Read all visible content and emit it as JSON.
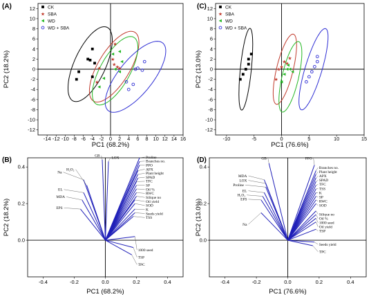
{
  "figure": {
    "colors": {
      "CK": "#000000",
      "SBA": "#c0392b",
      "WD": "#22b722",
      "WD + SBA": "#2d2dd4",
      "vector": "#1f1fb8",
      "leader": "#444444"
    },
    "legend_entries": [
      "CK",
      "SBA",
      "WD",
      "WD + SBA"
    ]
  },
  "chart_data": [
    {
      "id": "A",
      "panel_label": "(A)",
      "type": "scatter",
      "xlabel": "PC1 (68.2%)",
      "ylabel": "PC2 (18.2%)",
      "xlim": [
        -16,
        16
      ],
      "ylim": [
        -13,
        13
      ],
      "xticks": [
        -14,
        -12,
        -10,
        -8,
        -6,
        -4,
        -2,
        0,
        2,
        4,
        6,
        8,
        10,
        12,
        14,
        16
      ],
      "yticks": [
        -12,
        -10,
        -8,
        -6,
        -4,
        -2,
        0,
        2,
        4,
        6,
        8,
        10,
        12
      ],
      "series": [
        {
          "name": "CK",
          "marker": "square",
          "points": [
            [
              -7.5,
              -2.0
            ],
            [
              -7.0,
              -0.5
            ],
            [
              -5.0,
              2.0
            ],
            [
              -4.5,
              1.8
            ],
            [
              -4.0,
              4.0
            ],
            [
              -4.0,
              -1.5
            ],
            [
              -3.5,
              1.2
            ]
          ]
        },
        {
          "name": "SBA",
          "marker": "star",
          "points": [
            [
              -3.0,
              -2.5
            ],
            [
              -2.5,
              0.2
            ],
            [
              0.5,
              2.0
            ],
            [
              0.8,
              1.0
            ],
            [
              1.0,
              5.0
            ],
            [
              1.5,
              0.5
            ],
            [
              2.0,
              0.2
            ]
          ]
        },
        {
          "name": "WD",
          "marker": "triangle-left",
          "points": [
            [
              -2.5,
              -3.5
            ],
            [
              -1.5,
              -1.8
            ],
            [
              0.5,
              3.0
            ],
            [
              1.0,
              0.0
            ],
            [
              2.0,
              3.5
            ],
            [
              2.5,
              1.5
            ],
            [
              2.0,
              -0.5
            ]
          ]
        },
        {
          "name": "WD + SBA",
          "marker": "circle",
          "points": [
            [
              3.5,
              -2.5
            ],
            [
              4.0,
              -4.0
            ],
            [
              5.0,
              -3.0
            ],
            [
              5.5,
              0.0
            ],
            [
              6.0,
              0.2
            ],
            [
              7.0,
              -0.2
            ],
            [
              7.5,
              1.5
            ]
          ]
        }
      ],
      "ellipses": [
        {
          "series": "CK",
          "center": [
            -4.5,
            1.0
          ],
          "rx": 8.2,
          "ry": 3.4,
          "angle_deg": 62
        },
        {
          "series": "SBA",
          "center": [
            0.8,
            0.5
          ],
          "rx": 8.2,
          "ry": 3.4,
          "angle_deg": 55
        },
        {
          "series": "WD",
          "center": [
            1.0,
            -0.3
          ],
          "rx": 7.8,
          "ry": 3.2,
          "angle_deg": 57
        },
        {
          "series": "WD + SBA",
          "center": [
            5.5,
            -1.5
          ],
          "rx": 9.0,
          "ry": 3.6,
          "angle_deg": 47
        }
      ]
    },
    {
      "id": "C",
      "panel_label": "(C)",
      "type": "scatter",
      "xlabel": "PC1 (76.6%)",
      "ylabel": "PC2 (13.0%)",
      "xlim": [
        -12,
        15
      ],
      "ylim": [
        -13,
        13
      ],
      "xticks": [
        -10,
        -5,
        0,
        5,
        10,
        15
      ],
      "yticks": [
        -12,
        -10,
        -8,
        -6,
        -4,
        -2,
        0,
        2,
        4,
        6,
        8,
        10,
        12
      ],
      "series": [
        {
          "name": "CK",
          "marker": "square",
          "points": [
            [
              -7.5,
              -2.0
            ],
            [
              -7.0,
              -1.0
            ],
            [
              -6.5,
              0.0
            ],
            [
              -6.0,
              1.0
            ],
            [
              -6.0,
              2.0
            ],
            [
              -5.5,
              3.0
            ]
          ]
        },
        {
          "name": "SBA",
          "marker": "star",
          "points": [
            [
              -1.0,
              -2.0
            ],
            [
              -0.5,
              0.0
            ],
            [
              0.0,
              0.5
            ],
            [
              0.5,
              1.5
            ],
            [
              1.0,
              1.2
            ],
            [
              1.5,
              2.2
            ]
          ]
        },
        {
          "name": "WD",
          "marker": "triangle-left",
          "points": [
            [
              0.0,
              -2.5
            ],
            [
              0.5,
              -1.0
            ],
            [
              1.0,
              0.0
            ],
            [
              1.2,
              0.8
            ],
            [
              1.5,
              0.0
            ],
            [
              2.0,
              -0.5
            ]
          ]
        },
        {
          "name": "WD + SBA",
          "marker": "circle",
          "points": [
            [
              4.5,
              -2.5
            ],
            [
              5.0,
              -1.5
            ],
            [
              5.5,
              -0.5
            ],
            [
              6.0,
              0.5
            ],
            [
              6.5,
              1.5
            ],
            [
              6.5,
              2.5
            ]
          ]
        }
      ],
      "ellipses": [
        {
          "series": "CK",
          "center": [
            -6.5,
            0.0
          ],
          "rx": 8.2,
          "ry": 1.8,
          "angle_deg": 80
        },
        {
          "series": "SBA",
          "center": [
            0.6,
            0.0
          ],
          "rx": 7.5,
          "ry": 2.6,
          "angle_deg": 66
        },
        {
          "series": "WD",
          "center": [
            1.6,
            -1.5
          ],
          "rx": 7.5,
          "ry": 2.6,
          "angle_deg": 67
        },
        {
          "series": "WD + SBA",
          "center": [
            5.8,
            0.0
          ],
          "rx": 9.0,
          "ry": 2.6,
          "angle_deg": 62
        }
      ]
    },
    {
      "id": "B",
      "panel_label": "(B)",
      "type": "biplot",
      "xlabel": "PC1 (68.2%)",
      "ylabel": "PC2 (18.2%)",
      "xlim": [
        -0.5,
        0.5
      ],
      "ylim": [
        -0.2,
        0.45
      ],
      "xticks": [
        -0.4,
        -0.2,
        0.0,
        0.2,
        0.4
      ],
      "yticks": [
        0.0,
        0.2,
        0.4
      ],
      "vectors": [
        {
          "name": "GB",
          "x": -0.02,
          "y": 0.44,
          "lx": -0.035,
          "ly": 0.455
        },
        {
          "name": "LOX",
          "x": 0.02,
          "y": 0.43,
          "lx": 0.04,
          "ly": 0.445
        },
        {
          "name": "Na",
          "x": -0.14,
          "y": 0.33,
          "lx": -0.28,
          "ly": 0.365
        },
        {
          "name": "H₂O₂",
          "x": -0.12,
          "y": 0.3,
          "lx": -0.2,
          "ly": 0.38
        },
        {
          "name": "EL",
          "x": -0.14,
          "y": 0.26,
          "lx": -0.275,
          "ly": 0.27
        },
        {
          "name": "MDA",
          "x": -0.15,
          "y": 0.22,
          "lx": -0.26,
          "ly": 0.23
        },
        {
          "name": "EPS",
          "x": -0.16,
          "y": 0.17,
          "lx": -0.275,
          "ly": 0.17
        },
        {
          "name": "Proline",
          "x": 0.22,
          "y": 0.45,
          "lx": 0.26,
          "ly": 0.447
        },
        {
          "name": "Branches no.",
          "x": 0.22,
          "y": 0.43,
          "lx": 0.26,
          "ly": 0.425
        },
        {
          "name": "PPO",
          "x": 0.22,
          "y": 0.41,
          "lx": 0.26,
          "ly": 0.403
        },
        {
          "name": "APX",
          "x": 0.21,
          "y": 0.38,
          "lx": 0.26,
          "ly": 0.381
        },
        {
          "name": "Plant height",
          "x": 0.21,
          "y": 0.36,
          "lx": 0.26,
          "ly": 0.359
        },
        {
          "name": "SPAD",
          "x": 0.21,
          "y": 0.34,
          "lx": 0.26,
          "ly": 0.337
        },
        {
          "name": "TFC",
          "x": 0.2,
          "y": 0.32,
          "lx": 0.26,
          "ly": 0.315
        },
        {
          "name": "SP",
          "x": 0.2,
          "y": 0.3,
          "lx": 0.26,
          "ly": 0.293
        },
        {
          "name": "Oil %",
          "x": 0.2,
          "y": 0.28,
          "lx": 0.26,
          "ly": 0.271
        },
        {
          "name": "RWC",
          "x": 0.2,
          "y": 0.26,
          "lx": 0.26,
          "ly": 0.249
        },
        {
          "name": "Silique no",
          "x": 0.2,
          "y": 0.24,
          "lx": 0.26,
          "ly": 0.227
        },
        {
          "name": "Oil yield",
          "x": 0.19,
          "y": 0.22,
          "lx": 0.26,
          "ly": 0.205
        },
        {
          "name": "SOD",
          "x": 0.19,
          "y": 0.2,
          "lx": 0.26,
          "ly": 0.183
        },
        {
          "name": "K",
          "x": 0.19,
          "y": 0.17,
          "lx": 0.26,
          "ly": 0.161
        },
        {
          "name": "Seeds yield",
          "x": 0.19,
          "y": 0.15,
          "lx": 0.26,
          "ly": 0.139
        },
        {
          "name": "TSS",
          "x": 0.18,
          "y": 0.13,
          "lx": 0.26,
          "ly": 0.117
        },
        {
          "name": "1000 seed",
          "x": 0.19,
          "y": 0.02,
          "lx": 0.21,
          "ly": -0.06
        },
        {
          "name": "TSP",
          "x": 0.18,
          "y": -0.04,
          "lx": 0.21,
          "ly": -0.1
        },
        {
          "name": "TPC",
          "x": 0.17,
          "y": -0.08,
          "lx": 0.21,
          "ly": -0.14
        }
      ]
    },
    {
      "id": "D",
      "panel_label": "(D)",
      "type": "biplot",
      "xlabel": "PC1 (76.6%)",
      "ylabel": "PC2 (13.0%)",
      "xlim": [
        -0.5,
        0.5
      ],
      "ylim": [
        -0.2,
        0.45
      ],
      "xticks": [
        -0.4,
        -0.2,
        0.0,
        0.2,
        0.4
      ],
      "yticks": [
        0.0,
        0.2,
        0.4
      ],
      "vectors": [
        {
          "name": "GB",
          "x": -0.12,
          "y": 0.42,
          "lx": -0.135,
          "ly": 0.44
        },
        {
          "name": "PPO",
          "x": 0.17,
          "y": 0.41,
          "lx": 0.155,
          "ly": 0.44
        },
        {
          "name": "MDA",
          "x": -0.15,
          "y": 0.33,
          "lx": -0.26,
          "ly": 0.345
        },
        {
          "name": "LOX",
          "x": -0.14,
          "y": 0.31,
          "lx": -0.26,
          "ly": 0.32
        },
        {
          "name": "Proline",
          "x": -0.14,
          "y": 0.29,
          "lx": -0.28,
          "ly": 0.295
        },
        {
          "name": "EL",
          "x": -0.15,
          "y": 0.26,
          "lx": -0.26,
          "ly": 0.263
        },
        {
          "name": "H₂O₂",
          "x": -0.16,
          "y": 0.24,
          "lx": -0.27,
          "ly": 0.24
        },
        {
          "name": "EPS",
          "x": -0.17,
          "y": 0.22,
          "lx": -0.26,
          "ly": 0.217
        },
        {
          "name": "Na",
          "x": -0.17,
          "y": 0.15,
          "lx": -0.26,
          "ly": 0.08
        },
        {
          "name": "Branches no.",
          "x": 0.18,
          "y": 0.38,
          "lx": 0.2,
          "ly": 0.39
        },
        {
          "name": "Plant height",
          "x": 0.18,
          "y": 0.36,
          "lx": 0.2,
          "ly": 0.367
        },
        {
          "name": "APX",
          "x": 0.18,
          "y": 0.34,
          "lx": 0.2,
          "ly": 0.344
        },
        {
          "name": "SPAD",
          "x": 0.18,
          "y": 0.32,
          "lx": 0.2,
          "ly": 0.321
        },
        {
          "name": "TFC",
          "x": 0.18,
          "y": 0.3,
          "lx": 0.2,
          "ly": 0.298
        },
        {
          "name": "TSS",
          "x": 0.18,
          "y": 0.28,
          "lx": 0.2,
          "ly": 0.275
        },
        {
          "name": "K",
          "x": 0.18,
          "y": 0.26,
          "lx": 0.2,
          "ly": 0.252
        },
        {
          "name": "SP",
          "x": 0.18,
          "y": 0.24,
          "lx": 0.2,
          "ly": 0.229
        },
        {
          "name": "RWC",
          "x": 0.18,
          "y": 0.22,
          "lx": 0.2,
          "ly": 0.206
        },
        {
          "name": "SOD",
          "x": 0.18,
          "y": 0.2,
          "lx": 0.2,
          "ly": 0.183
        },
        {
          "name": "Silique no",
          "x": 0.18,
          "y": 0.16,
          "lx": 0.2,
          "ly": 0.135
        },
        {
          "name": "Oil %",
          "x": 0.18,
          "y": 0.14,
          "lx": 0.2,
          "ly": 0.112
        },
        {
          "name": "1000 seed",
          "x": 0.18,
          "y": 0.12,
          "lx": 0.2,
          "ly": 0.089
        },
        {
          "name": "Oil yield",
          "x": 0.18,
          "y": 0.1,
          "lx": 0.2,
          "ly": 0.066
        },
        {
          "name": "TSP",
          "x": 0.18,
          "y": 0.06,
          "lx": 0.2,
          "ly": 0.043
        },
        {
          "name": "Seeds yield",
          "x": 0.17,
          "y": -0.01,
          "lx": 0.2,
          "ly": -0.03
        },
        {
          "name": "TPC",
          "x": 0.16,
          "y": -0.03,
          "lx": 0.2,
          "ly": -0.07
        }
      ]
    }
  ]
}
